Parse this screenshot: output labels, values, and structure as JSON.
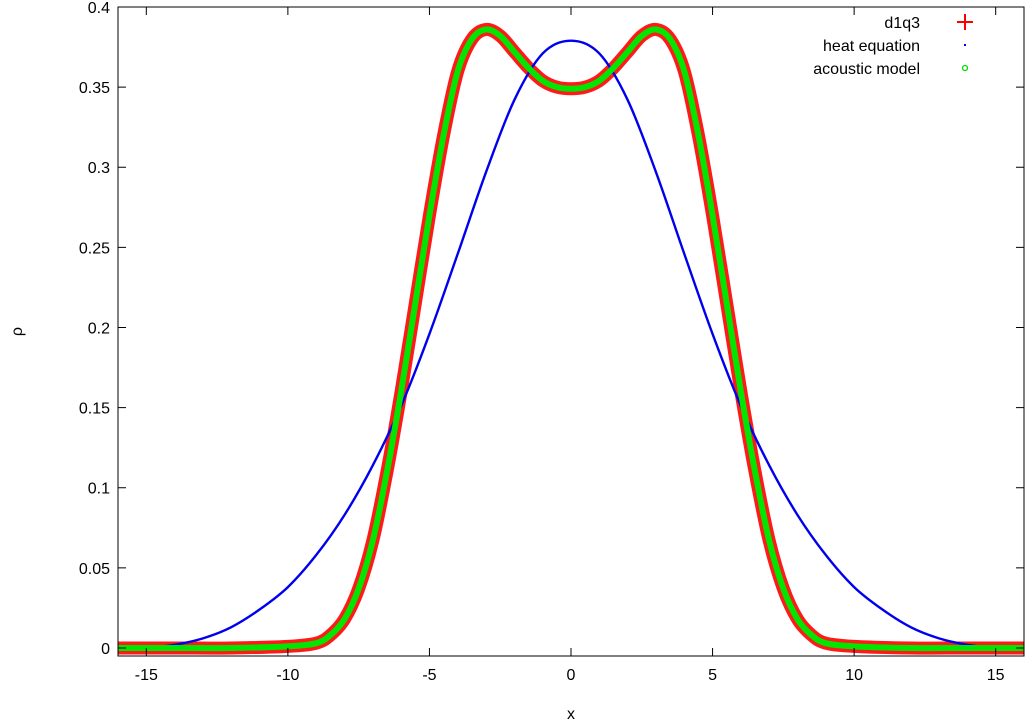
{
  "chart_data": {
    "type": "line",
    "title": "",
    "xlabel": "x",
    "ylabel": "ρ",
    "xlim": [
      -16,
      16
    ],
    "ylim": [
      -0.005,
      0.4
    ],
    "x_ticks": [
      -15,
      -10,
      -5,
      0,
      5,
      10,
      15
    ],
    "y_ticks": [
      0,
      0.05,
      0.1,
      0.15,
      0.2,
      0.25,
      0.3,
      0.35,
      0.4
    ],
    "x_tick_labels": [
      "-15",
      "-10",
      "-5",
      "0",
      "5",
      "10",
      "15"
    ],
    "y_tick_labels": [
      "0",
      "0.05",
      "0.1",
      "0.15",
      "0.2",
      "0.25",
      "0.3",
      "0.35",
      "0.4"
    ],
    "grid": false,
    "legend_position": "top-right",
    "series": [
      {
        "name": "d1q3",
        "marker": "plus",
        "color": "#ff0000",
        "x": [
          -16,
          -14,
          -12,
          -10,
          -9,
          -8.5,
          -8,
          -7.5,
          -7,
          -6.5,
          -6,
          -5.5,
          -5,
          -4.5,
          -4,
          -3.5,
          -3,
          -2.5,
          -2,
          -1.5,
          -1,
          -0.5,
          0,
          0.5,
          1,
          1.5,
          2,
          2.5,
          3,
          3.5,
          4,
          4.5,
          5,
          5.5,
          6,
          6.5,
          7,
          7.5,
          8,
          8.5,
          9,
          10,
          12,
          14,
          16
        ],
        "y": [
          0.0,
          0.0,
          0.0,
          0.001,
          0.003,
          0.008,
          0.018,
          0.037,
          0.067,
          0.11,
          0.16,
          0.215,
          0.27,
          0.32,
          0.36,
          0.38,
          0.386,
          0.382,
          0.372,
          0.362,
          0.354,
          0.35,
          0.349,
          0.35,
          0.354,
          0.362,
          0.372,
          0.382,
          0.386,
          0.38,
          0.36,
          0.32,
          0.27,
          0.215,
          0.16,
          0.11,
          0.067,
          0.037,
          0.018,
          0.008,
          0.003,
          0.001,
          0.0,
          0.0,
          0.0
        ]
      },
      {
        "name": "heat equation",
        "marker": "dot",
        "color": "#0000ff",
        "x": [
          -16,
          -15,
          -14,
          -13,
          -12,
          -11,
          -10,
          -9,
          -8,
          -7,
          -6,
          -5,
          -4,
          -3,
          -2,
          -1,
          0,
          1,
          2,
          3,
          4,
          5,
          6,
          7,
          8,
          9,
          10,
          11,
          12,
          13,
          14,
          15,
          16
        ],
        "y": [
          0.0,
          0.0,
          0.002,
          0.006,
          0.013,
          0.024,
          0.038,
          0.058,
          0.083,
          0.114,
          0.151,
          0.196,
          0.246,
          0.297,
          0.342,
          0.371,
          0.379,
          0.371,
          0.342,
          0.297,
          0.246,
          0.196,
          0.151,
          0.114,
          0.083,
          0.058,
          0.038,
          0.024,
          0.013,
          0.006,
          0.002,
          0.0,
          0.0
        ]
      },
      {
        "name": "acoustic model",
        "marker": "circle",
        "color": "#00dd00",
        "x": [
          -16,
          -14,
          -12,
          -10,
          -9,
          -8.5,
          -8,
          -7.5,
          -7,
          -6.5,
          -6,
          -5.5,
          -5,
          -4.5,
          -4,
          -3.5,
          -3,
          -2.5,
          -2,
          -1.5,
          -1,
          -0.5,
          0,
          0.5,
          1,
          1.5,
          2,
          2.5,
          3,
          3.5,
          4,
          4.5,
          5,
          5.5,
          6,
          6.5,
          7,
          7.5,
          8,
          8.5,
          9,
          10,
          12,
          14,
          16
        ],
        "y": [
          0.0,
          0.0,
          0.0,
          0.001,
          0.003,
          0.008,
          0.018,
          0.037,
          0.067,
          0.11,
          0.16,
          0.215,
          0.27,
          0.32,
          0.36,
          0.38,
          0.386,
          0.382,
          0.372,
          0.362,
          0.354,
          0.35,
          0.349,
          0.35,
          0.354,
          0.362,
          0.372,
          0.382,
          0.386,
          0.38,
          0.36,
          0.32,
          0.27,
          0.215,
          0.16,
          0.11,
          0.067,
          0.037,
          0.018,
          0.008,
          0.003,
          0.001,
          0.0,
          0.0,
          0.0
        ]
      }
    ]
  }
}
